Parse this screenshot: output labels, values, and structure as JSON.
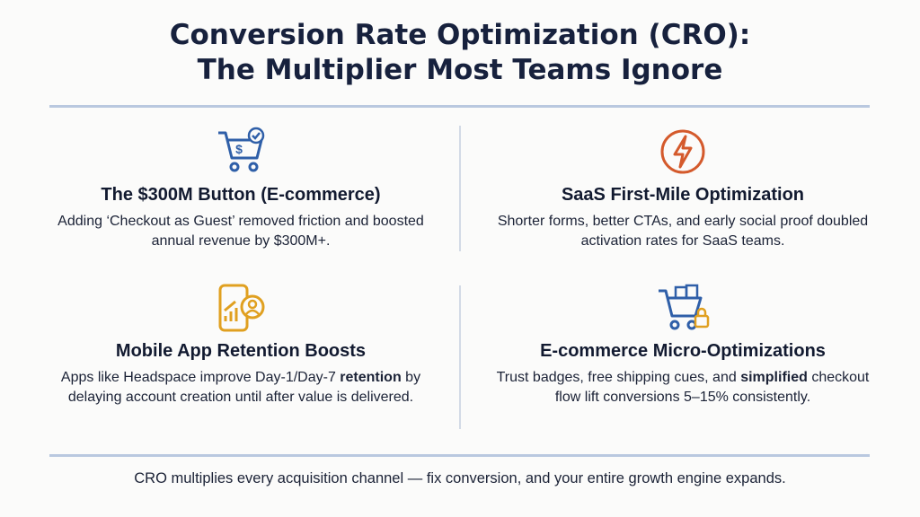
{
  "header": {
    "title_lines": [
      "Conversion Rate Optimization (CRO):",
      "The Multiplier Most Teams Ignore"
    ]
  },
  "cards": [
    {
      "title": "The $300M Button (E-commerce)",
      "body": [
        "Adding ‘Checkout as Guest’ removed friction and boosted annual revenue by $300M+."
      ]
    },
    {
      "title": "SaaS First-Mile Optimization",
      "body": [
        "Shorter forms, better CTAs, and early social proof doubled activation rates for SaaS teams."
      ]
    },
    {
      "title": "Mobile App Retention Boosts",
      "body": [
        "Apps like Headspace improve Day-1/Day-7 ",
        "retention",
        " by delaying account creation until after value is delivered."
      ]
    },
    {
      "title": "E-commerce Micro-Optimizations",
      "body": [
        "Trust badges, free shipping cues, and ",
        "simplified",
        " checkout flow lift conversions 5–15% consistently."
      ]
    }
  ],
  "footer": "CRO multiplies every acquisition channel — fix conversion, and your entire growth engine expands."
}
